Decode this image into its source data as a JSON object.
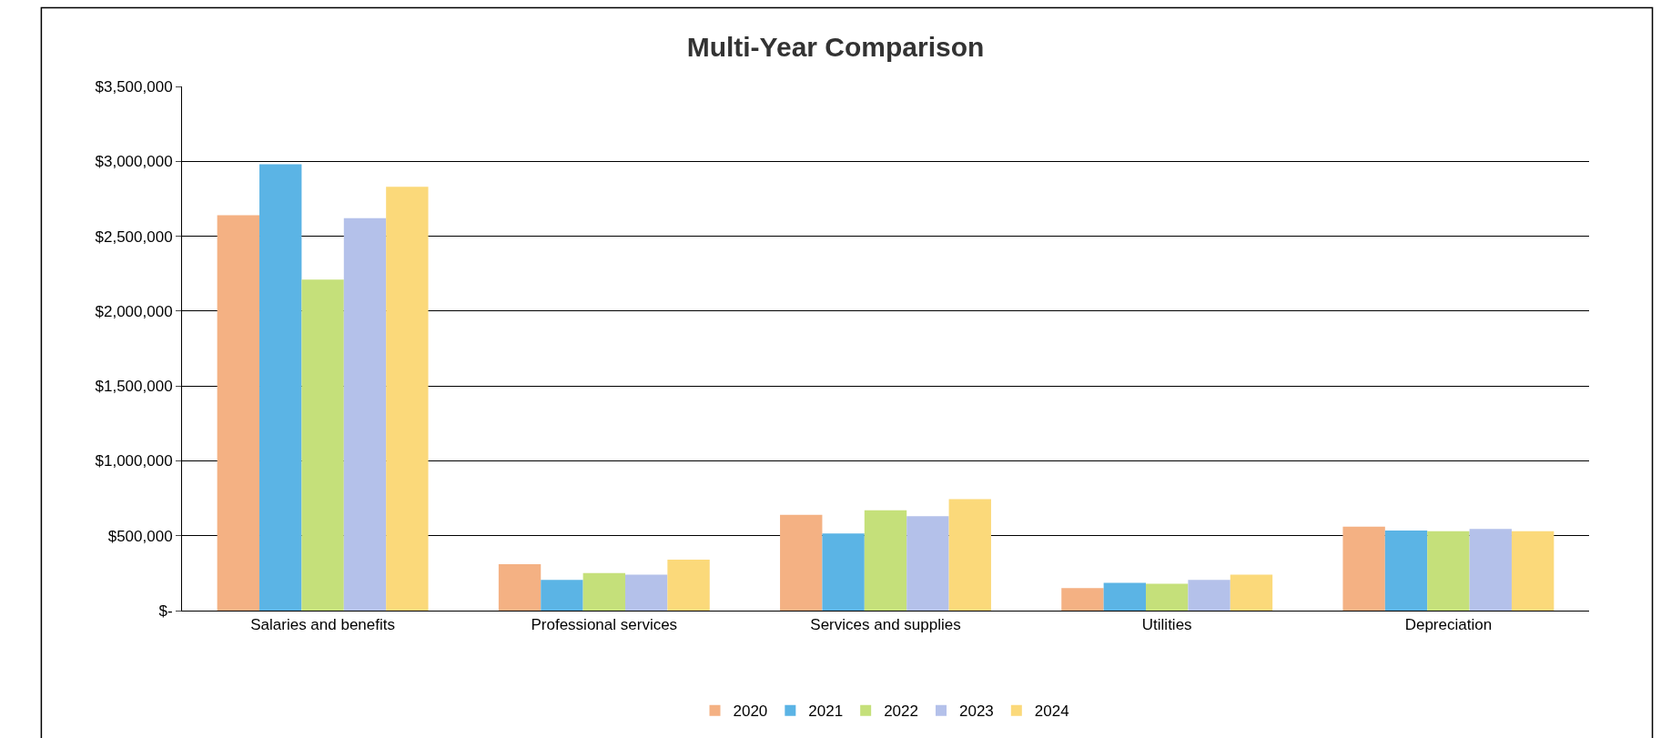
{
  "chart_data": {
    "type": "bar",
    "title": "Multi-Year Comparison",
    "categories": [
      "Salaries and benefits",
      "Professional services",
      "Services and supplies",
      "Utilities",
      "Depreciation"
    ],
    "series": [
      {
        "name": "2020",
        "color": "#f4b183",
        "values": [
          2640000,
          310000,
          640000,
          150000,
          560000
        ]
      },
      {
        "name": "2021",
        "color": "#5bb4e5",
        "values": [
          2980000,
          205000,
          515000,
          185000,
          535000
        ]
      },
      {
        "name": "2022",
        "color": "#c5e07a",
        "values": [
          2210000,
          250000,
          670000,
          180000,
          530000
        ]
      },
      {
        "name": "2023",
        "color": "#b4c1ea",
        "values": [
          2620000,
          240000,
          630000,
          205000,
          545000
        ]
      },
      {
        "name": "2024",
        "color": "#fbd97a",
        "values": [
          2830000,
          340000,
          745000,
          240000,
          530000
        ]
      }
    ],
    "ylim": [
      0,
      3500000
    ],
    "yticks": [
      {
        "value": 0,
        "label": "$-"
      },
      {
        "value": 500000,
        "label": "$500,000"
      },
      {
        "value": 1000000,
        "label": "$1,000,000"
      },
      {
        "value": 1500000,
        "label": "$1,500,000"
      },
      {
        "value": 2000000,
        "label": "$2,000,000"
      },
      {
        "value": 2500000,
        "label": "$2,500,000"
      },
      {
        "value": 3000000,
        "label": "$3,000,000"
      },
      {
        "value": 3500000,
        "label": "$3,500,000"
      }
    ],
    "grid": "y",
    "legend": "bottom"
  }
}
